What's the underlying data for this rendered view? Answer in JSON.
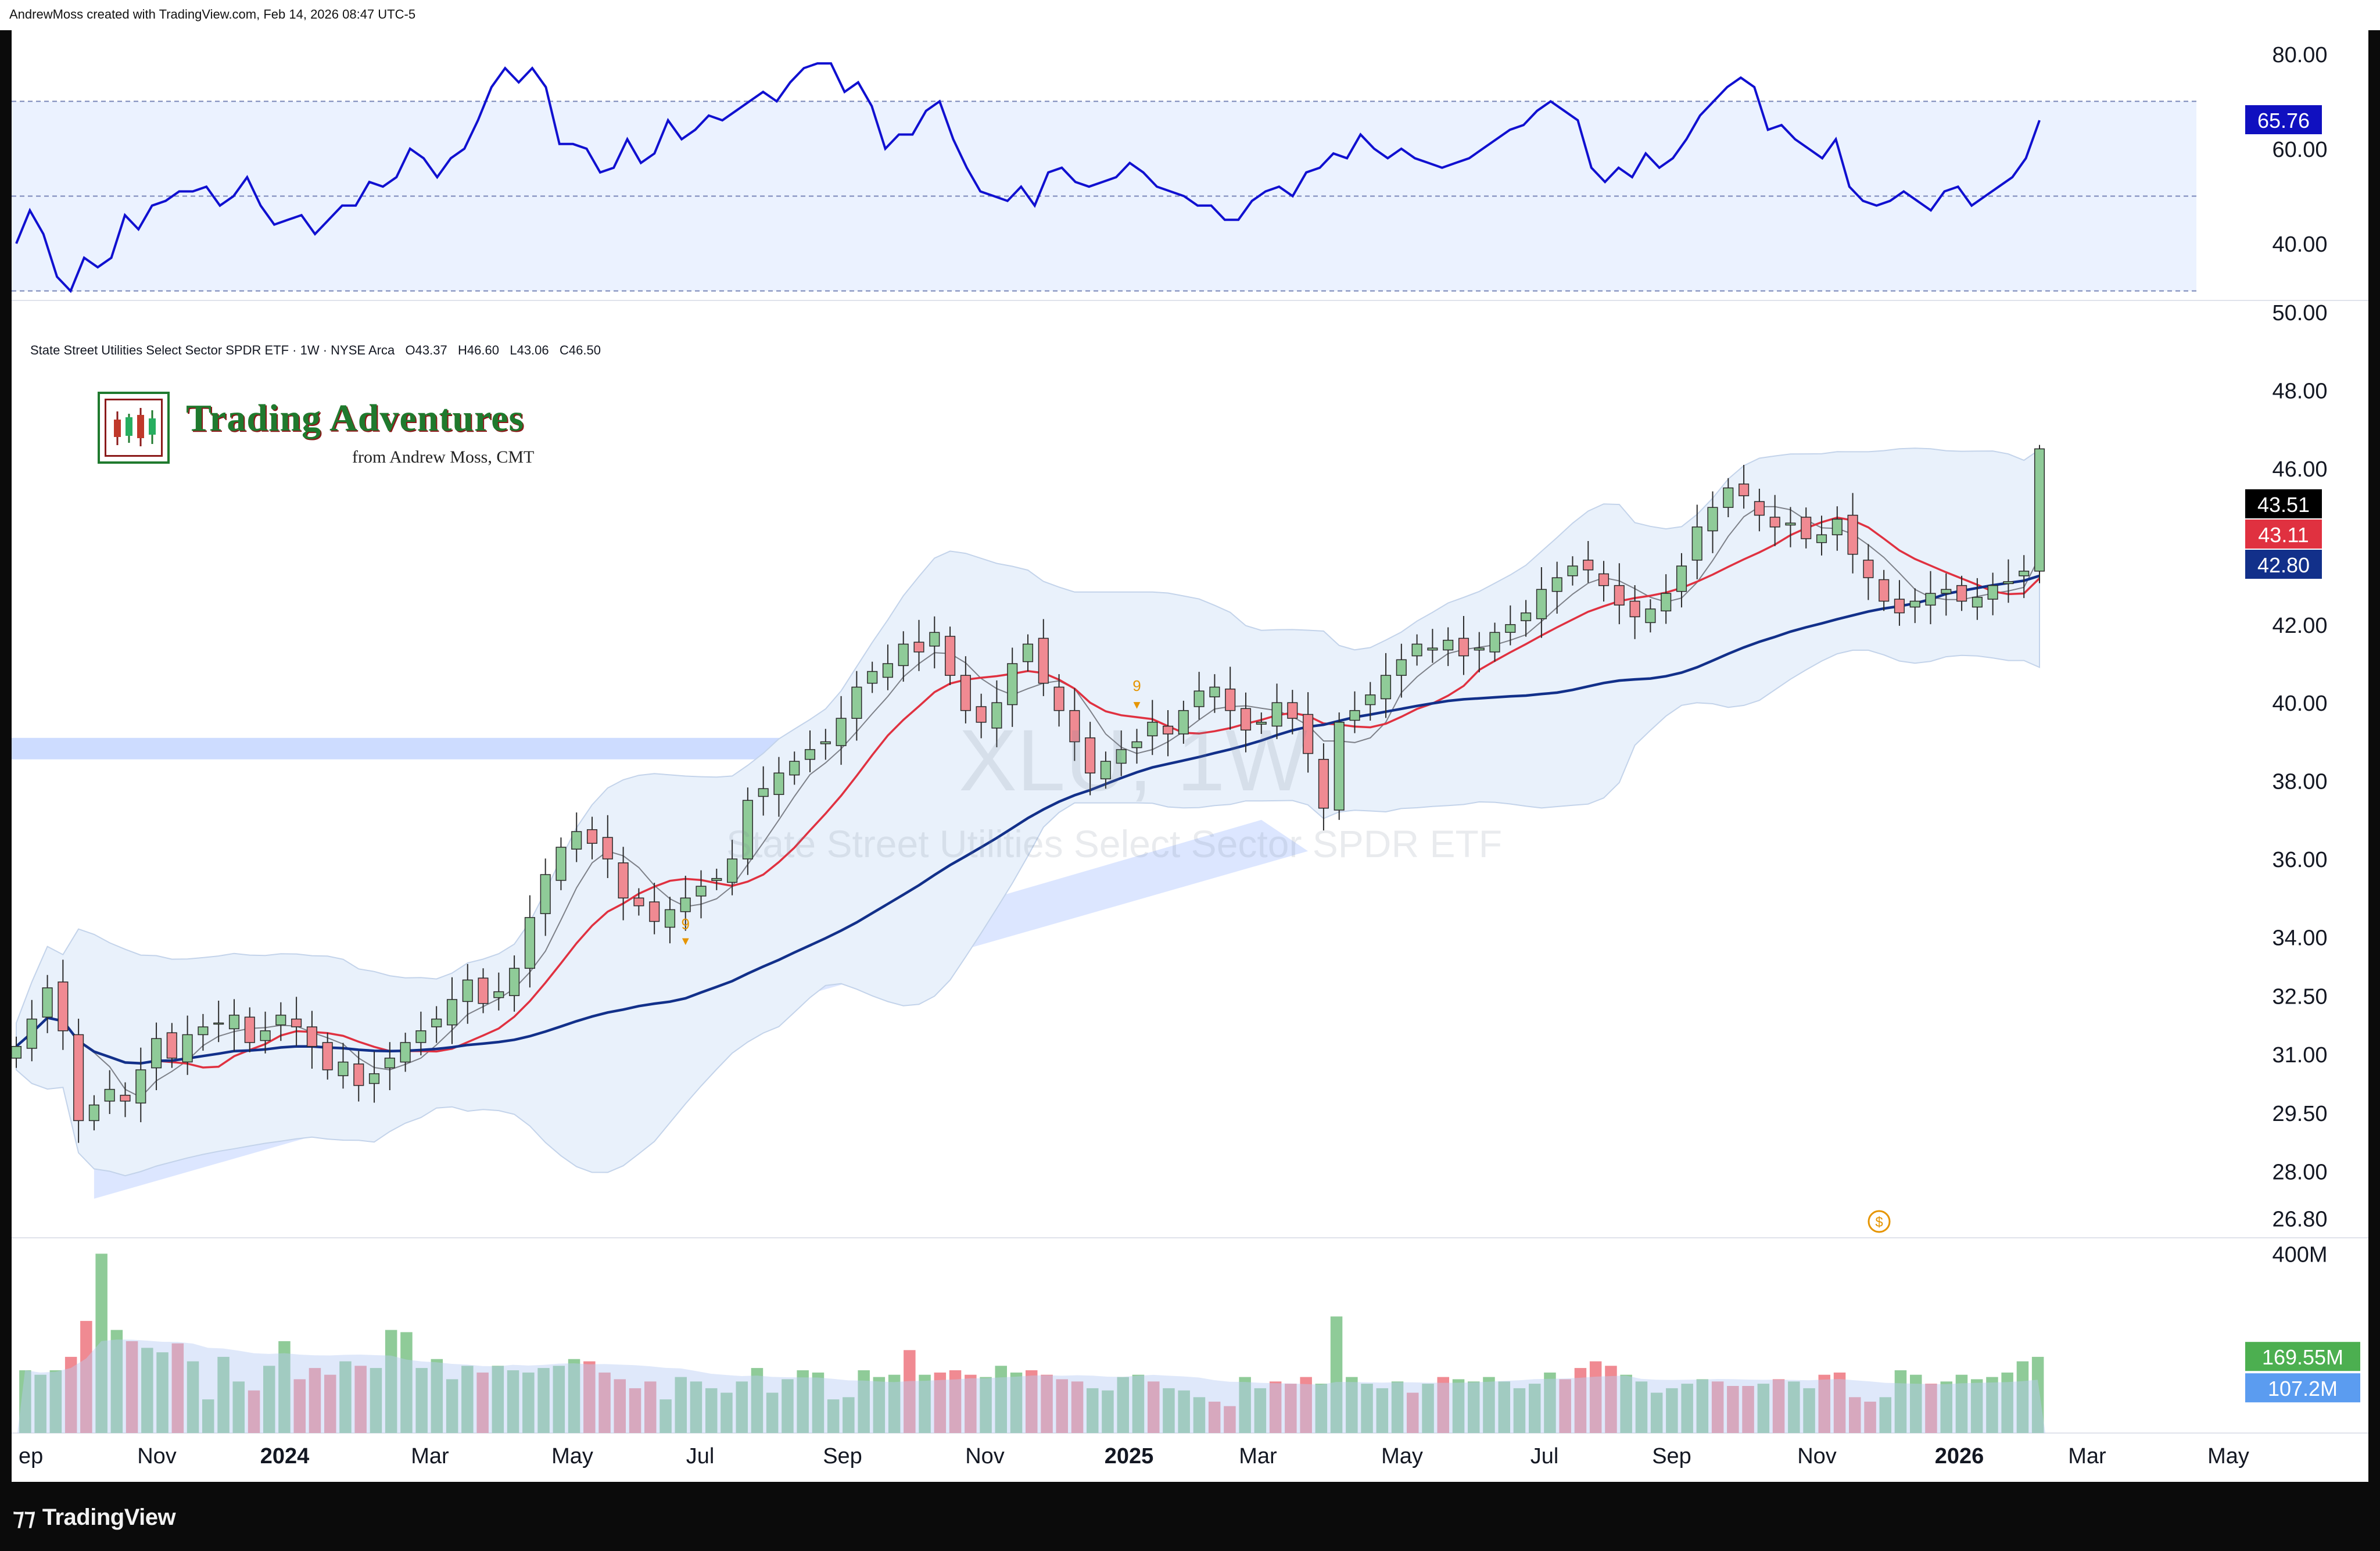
{
  "header": {
    "credit": "AndrewMoss created with TradingView.com, Feb 14, 2026 08:47 UTC-5"
  },
  "legend": {
    "symbol": "State Street Utilities Select Sector SPDR ETF · 1W · NYSE Arca",
    "open": "O43.37",
    "high": "H46.60",
    "low": "L43.06",
    "close": "C46.50"
  },
  "brand": {
    "title": "Trading Adventures",
    "subtitle": "from Andrew Moss, CMT"
  },
  "watermark": {
    "ticker": "XLU, 1W",
    "name": "State Street Utilities Select Sector SPDR ETF"
  },
  "footer": {
    "logo": "TradingView"
  },
  "colors": {
    "up": "#8fcb98",
    "down": "#f08a92",
    "rsi": "#1010d0",
    "ma_slow": "#12308a",
    "ma_fast": "#e03140",
    "band": "#e6efff"
  },
  "chart_data": [
    {
      "type": "line",
      "name": "rsi",
      "yticks": [
        "80.00",
        "60.00",
        "40.00"
      ],
      "ylim": [
        28,
        85
      ],
      "levels": [
        70,
        50,
        30
      ],
      "last_label": "65.76",
      "values": [
        40,
        47,
        42,
        33,
        30,
        37,
        35,
        37,
        46,
        43,
        48,
        49,
        51,
        51,
        52,
        48,
        50,
        54,
        48,
        44,
        45,
        46,
        42,
        45,
        48,
        48,
        53,
        52,
        54,
        60,
        58,
        54,
        58,
        60,
        66,
        73,
        77,
        74,
        77,
        73,
        61,
        61,
        60,
        55,
        56,
        62,
        57,
        59,
        66,
        62,
        64,
        67,
        66,
        68,
        70,
        72,
        70,
        74,
        77,
        78,
        78,
        72,
        74,
        69,
        60,
        63,
        63,
        68,
        70,
        62,
        56,
        51,
        50,
        49,
        52,
        48,
        55,
        56,
        53,
        52,
        53,
        54,
        57,
        55,
        52,
        51,
        50,
        48,
        48,
        45,
        45,
        49,
        51,
        52,
        50,
        55,
        56,
        59,
        58,
        63,
        60,
        58,
        60,
        58,
        57,
        56,
        57,
        58,
        60,
        62,
        64,
        65,
        68,
        70,
        68,
        66,
        56,
        53,
        56,
        54,
        59,
        56,
        58,
        62,
        67,
        70,
        73,
        75,
        73,
        64,
        65,
        62,
        60,
        58,
        62,
        52,
        49,
        48,
        49,
        51,
        49,
        47,
        51,
        52,
        48,
        50,
        52,
        54,
        58,
        66
      ],
      "series": [
        {
          "name": "RSI"
        }
      ]
    },
    {
      "type": "candlestick",
      "name": "price",
      "yticks": [
        "50.00",
        "48.00",
        "46.00",
        "43.51",
        "43.11",
        "42.80",
        "42.00",
        "40.00",
        "38.00",
        "36.00",
        "34.00",
        "32.50",
        "31.00",
        "29.50",
        "28.00",
        "26.80"
      ],
      "ylim": [
        26.3,
        50.3
      ],
      "xticks": [
        "ep",
        "Nov",
        "2024",
        "Mar",
        "May",
        "Jul",
        "Sep",
        "Nov",
        "2025",
        "Mar",
        "May",
        "Jul",
        "Sep",
        "Nov",
        "2026",
        "Mar",
        "May"
      ],
      "price_labels": [
        "43.51",
        "43.11",
        "42.80"
      ],
      "annotations": [
        "9",
        "9"
      ],
      "candles_ohlc_note": "weekly bars",
      "closes": [
        31.2,
        31.9,
        32.7,
        31.6,
        29.3,
        29.7,
        30.1,
        29.8,
        30.6,
        31.4,
        30.9,
        31.5,
        31.7,
        31.8,
        32.0,
        31.3,
        31.6,
        32.0,
        31.7,
        31.2,
        30.6,
        30.8,
        30.2,
        30.5,
        30.9,
        31.3,
        31.6,
        31.9,
        32.4,
        32.9,
        32.3,
        32.6,
        33.2,
        34.5,
        35.6,
        36.3,
        36.7,
        36.4,
        36.0,
        35.0,
        34.8,
        34.4,
        34.7,
        35.0,
        35.3,
        35.5,
        36.0,
        37.5,
        37.8,
        38.2,
        38.5,
        38.8,
        39.0,
        39.6,
        40.4,
        40.8,
        41.0,
        41.5,
        41.3,
        41.8,
        40.7,
        39.8,
        39.5,
        40.0,
        41.0,
        41.5,
        40.5,
        39.8,
        39.0,
        38.2,
        38.5,
        38.8,
        39.0,
        39.5,
        39.2,
        39.8,
        40.3,
        40.4,
        39.8,
        39.3,
        39.5,
        40.0,
        39.6,
        38.7,
        37.3,
        39.5,
        39.8,
        40.2,
        40.7,
        41.1,
        41.5,
        41.4,
        41.6,
        41.2,
        41.4,
        41.8,
        42.0,
        42.3,
        42.9,
        43.2,
        43.5,
        43.4,
        43.0,
        42.5,
        42.2,
        42.4,
        42.8,
        43.5,
        44.5,
        45.0,
        45.5,
        45.3,
        44.8,
        44.5,
        44.6,
        44.2,
        44.3,
        44.7,
        43.8,
        43.2,
        42.6,
        42.3,
        42.6,
        42.8,
        42.9,
        42.6,
        42.7,
        43.0,
        43.1,
        43.37,
        46.5
      ],
      "series": [
        {
          "name": ""
        },
        {
          "name": ""
        },
        {
          "name": ""
        }
      ]
    },
    {
      "type": "bar",
      "name": "volume",
      "yticks": [
        "400M"
      ],
      "ylim": [
        0,
        420
      ],
      "last_labels": [
        "169.55M",
        "107.2M"
      ],
      "values": [
        140,
        130,
        140,
        170,
        250,
        400,
        230,
        205,
        190,
        180,
        200,
        160,
        75,
        170,
        115,
        95,
        150,
        205,
        120,
        145,
        130,
        160,
        150,
        145,
        230,
        225,
        145,
        165,
        120,
        150,
        135,
        150,
        140,
        135,
        145,
        150,
        165,
        160,
        135,
        120,
        100,
        115,
        75,
        125,
        115,
        100,
        90,
        115,
        145,
        90,
        120,
        140,
        135,
        75,
        80,
        140,
        125,
        130,
        185,
        130,
        135,
        140,
        130,
        125,
        150,
        135,
        140,
        130,
        120,
        115,
        100,
        95,
        125,
        130,
        115,
        100,
        95,
        80,
        70,
        60,
        125,
        100,
        115,
        110,
        125,
        110,
        260,
        125,
        110,
        100,
        115,
        90,
        110,
        125,
        120,
        115,
        125,
        115,
        100,
        110,
        135,
        120,
        145,
        160,
        150,
        130,
        115,
        90,
        100,
        110,
        120,
        115,
        105,
        105,
        110,
        120,
        115,
        100,
        130,
        135,
        80,
        70,
        80,
        140,
        130,
        110,
        115,
        130,
        120,
        125,
        135,
        160,
        170
      ]
    }
  ]
}
